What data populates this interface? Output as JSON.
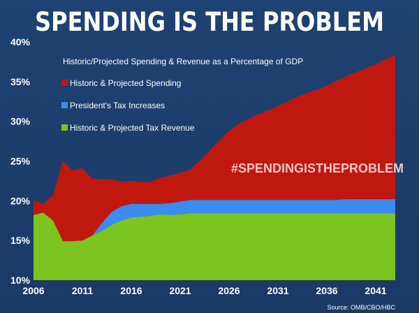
{
  "chart_data": {
    "type": "area",
    "title": "SPENDING IS THE PROBLEM",
    "subtitle": "Historic/Projected Spending & Revenue as a Percentage of GDP",
    "hashtag": "#SPENDINGISTHEPROBLEM",
    "source": "Source: OMB/CBO/HBC",
    "xlim": [
      2006,
      2043.5
    ],
    "ylim": [
      10,
      40
    ],
    "x_ticks": [
      2006,
      2011,
      2016,
      2021,
      2026,
      2031,
      2036,
      2041
    ],
    "x_tick_labels": [
      "2006",
      "2011",
      "2016",
      "2021",
      "2026",
      "2031",
      "2036",
      "2041"
    ],
    "y_ticks": [
      10,
      15,
      20,
      25,
      30,
      35,
      40
    ],
    "y_tick_labels": [
      "10%",
      "15%",
      "20%",
      "25%",
      "30%",
      "35%",
      "40%"
    ],
    "grid": false,
    "legend": [
      {
        "label": "Historic & Projected Spending",
        "color": "#c0180f"
      },
      {
        "label": "President's Tax Increases",
        "color": "#3b8cf0"
      },
      {
        "label": "Historic & Projected Tax Revenue",
        "color": "#7cc41f"
      }
    ],
    "colors": {
      "spending": "#c0180f",
      "tax_increase": "#3b8cf0",
      "revenue": "#7cc41f"
    },
    "series": [
      {
        "name": "Historic & Projected Spending",
        "x": [
          2006,
          2007,
          2008,
          2009,
          2010,
          2011,
          2012,
          2013,
          2014,
          2015,
          2016,
          2017,
          2018,
          2019,
          2020,
          2021,
          2022,
          2023,
          2024,
          2025,
          2026,
          2027,
          2028,
          2029,
          2030,
          2031,
          2032,
          2033,
          2034,
          2035,
          2036,
          2037,
          2038,
          2039,
          2040,
          2041,
          2042,
          2043
        ],
        "values": [
          20.1,
          19.6,
          20.7,
          25.0,
          23.8,
          24.1,
          22.8,
          22.7,
          22.7,
          22.4,
          22.5,
          22.4,
          22.4,
          22.9,
          23.2,
          23.5,
          23.9,
          25.0,
          26.3,
          27.6,
          28.8,
          29.7,
          30.3,
          30.9,
          31.4,
          31.9,
          32.5,
          33.1,
          33.6,
          34.0,
          34.5,
          35.1,
          35.7,
          36.2,
          36.7,
          37.2,
          37.8,
          38.4
        ]
      },
      {
        "name": "President's Tax Increases",
        "x": [
          2006,
          2007,
          2008,
          2009,
          2010,
          2011,
          2012,
          2013,
          2014,
          2015,
          2016,
          2017,
          2018,
          2019,
          2020,
          2021,
          2022,
          2023,
          2024,
          2025,
          2026,
          2027,
          2028,
          2029,
          2030,
          2031,
          2032,
          2033,
          2034,
          2035,
          2036,
          2037,
          2038,
          2039,
          2040,
          2041,
          2042,
          2043
        ],
        "values": [
          18.2,
          18.5,
          17.5,
          14.9,
          14.9,
          15.0,
          15.6,
          17.2,
          18.6,
          19.3,
          19.6,
          19.6,
          19.6,
          19.6,
          19.7,
          19.9,
          20.1,
          20.1,
          20.1,
          20.1,
          20.1,
          20.1,
          20.1,
          20.1,
          20.1,
          20.1,
          20.1,
          20.1,
          20.1,
          20.1,
          20.1,
          20.1,
          20.2,
          20.2,
          20.2,
          20.2,
          20.2,
          20.2
        ]
      },
      {
        "name": "Historic & Projected Tax Revenue",
        "x": [
          2006,
          2007,
          2008,
          2009,
          2010,
          2011,
          2012,
          2013,
          2014,
          2015,
          2016,
          2017,
          2018,
          2019,
          2020,
          2021,
          2022,
          2023,
          2024,
          2025,
          2026,
          2027,
          2028,
          2029,
          2030,
          2031,
          2032,
          2033,
          2034,
          2035,
          2036,
          2037,
          2038,
          2039,
          2040,
          2041,
          2042,
          2043
        ],
        "values": [
          18.2,
          18.5,
          17.5,
          14.9,
          14.9,
          15.0,
          15.6,
          16.2,
          17.0,
          17.5,
          17.9,
          18.0,
          18.1,
          18.3,
          18.2,
          18.3,
          18.4,
          18.4,
          18.4,
          18.4,
          18.4,
          18.4,
          18.4,
          18.4,
          18.4,
          18.4,
          18.4,
          18.4,
          18.4,
          18.4,
          18.4,
          18.4,
          18.4,
          18.4,
          18.4,
          18.4,
          18.4,
          18.4
        ]
      }
    ]
  }
}
